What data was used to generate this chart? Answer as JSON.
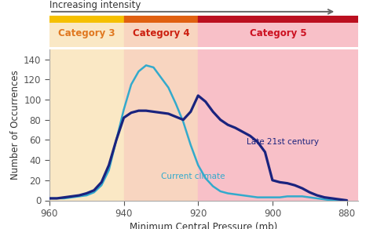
{
  "xlabel": "Minimum Central Pressure (mb)",
  "ylabel": "Number of Occurrences",
  "intensity_label": "Increasing intensity",
  "cat3_label": "Category 3",
  "cat4_label": "Category 4",
  "cat5_label": "Category 5",
  "current_label": "Current climate",
  "late21_label": "Late 21st century",
  "x_ticks": [
    960,
    940,
    920,
    900,
    880
  ],
  "y_ticks": [
    0,
    20,
    40,
    60,
    80,
    100,
    120,
    140
  ],
  "ylim": [
    0,
    150
  ],
  "xlim_left": 960,
  "xlim_right": 877,
  "cat3_bg": "#FAE8C5",
  "cat4_bg": "#F8D5C0",
  "cat5_bg": "#F8C0C8",
  "strip_cat3": "#F5C000",
  "strip_cat4": "#E06010",
  "strip_cat5": "#BB1020",
  "cat3_text_color": "#E07820",
  "cat4_text_color": "#CC2010",
  "cat5_text_color": "#CC1020",
  "current_color": "#33AACC",
  "late21_color": "#1A237E",
  "current_x": [
    960,
    958,
    956,
    954,
    952,
    950,
    948,
    946,
    944,
    942,
    940,
    938,
    936,
    934,
    932,
    930,
    928,
    926,
    924,
    922,
    920,
    918,
    916,
    914,
    912,
    910,
    908,
    906,
    904,
    902,
    900,
    898,
    896,
    894,
    892,
    890,
    888,
    886,
    884,
    882,
    880
  ],
  "current_y": [
    2,
    2,
    2,
    3,
    4,
    5,
    8,
    15,
    30,
    60,
    90,
    115,
    128,
    134,
    132,
    122,
    112,
    96,
    78,
    55,
    35,
    22,
    14,
    9,
    7,
    6,
    5,
    4,
    3,
    3,
    3,
    3,
    4,
    4,
    4,
    3,
    2,
    1,
    0,
    0,
    0
  ],
  "late21_x": [
    960,
    958,
    956,
    954,
    952,
    950,
    948,
    946,
    944,
    942,
    940,
    938,
    936,
    934,
    932,
    930,
    928,
    926,
    924,
    922,
    920,
    918,
    916,
    914,
    912,
    910,
    908,
    906,
    904,
    902,
    900,
    898,
    896,
    894,
    892,
    890,
    888,
    886,
    884,
    882,
    880
  ],
  "late21_y": [
    2,
    2,
    3,
    4,
    5,
    7,
    10,
    18,
    35,
    60,
    82,
    87,
    89,
    89,
    88,
    87,
    86,
    83,
    80,
    88,
    104,
    98,
    88,
    80,
    75,
    72,
    68,
    64,
    58,
    48,
    20,
    18,
    17,
    15,
    12,
    8,
    5,
    3,
    2,
    1,
    0
  ]
}
